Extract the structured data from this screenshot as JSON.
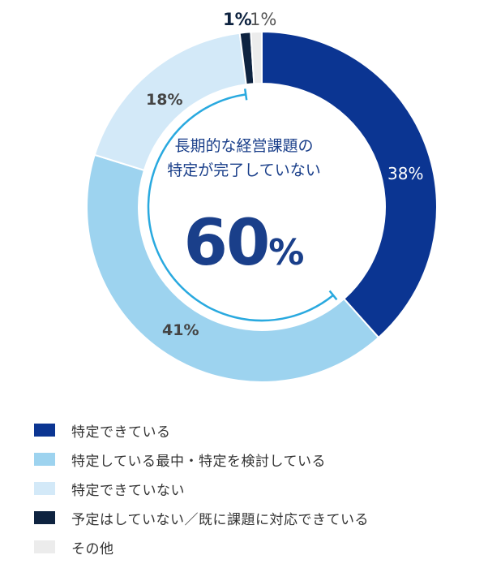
{
  "chart_data": {
    "type": "pie",
    "variant": "donut",
    "title": "",
    "categories": [
      "特定できている",
      "特定している最中・特定を検討している",
      "特定できていない",
      "予定はしていない／既に課題に対応できている",
      "その他"
    ],
    "values": [
      38,
      41,
      18,
      1,
      1
    ],
    "value_labels": [
      "38%",
      "41%",
      "18%",
      "1%",
      "1%"
    ],
    "colors": [
      "#0b3592",
      "#9dd3ef",
      "#d3e9f8",
      "#0e2340",
      "#ececec"
    ],
    "start_angle": "12 o'clock, clockwise",
    "annotation": {
      "text_line1": "長期的な経営課題の",
      "text_line2": "特定が完了していない",
      "value": "60",
      "unit": "%",
      "bracket_color": "#29a9df",
      "covers": [
        "特定している最中・特定を検討している",
        "特定できていない"
      ]
    },
    "legend_position": "bottom"
  },
  "center": {
    "line1": "長期的な経営課題の",
    "line2": "特定が完了していない",
    "value": "60",
    "unit": "%"
  },
  "labels": {
    "seg0": "38%",
    "seg1": "41%",
    "seg2": "18%",
    "seg3": "1%",
    "seg4": "1%"
  },
  "legend": [
    {
      "label": "特定できている",
      "color": "#0b3592"
    },
    {
      "label": "特定している最中・特定を検討している",
      "color": "#9dd3ef"
    },
    {
      "label": "特定できていない",
      "color": "#d3e9f8"
    },
    {
      "label": "予定はしていない／既に課題に対応できている",
      "color": "#0e2340"
    },
    {
      "label": "その他",
      "color": "#ececec"
    }
  ]
}
